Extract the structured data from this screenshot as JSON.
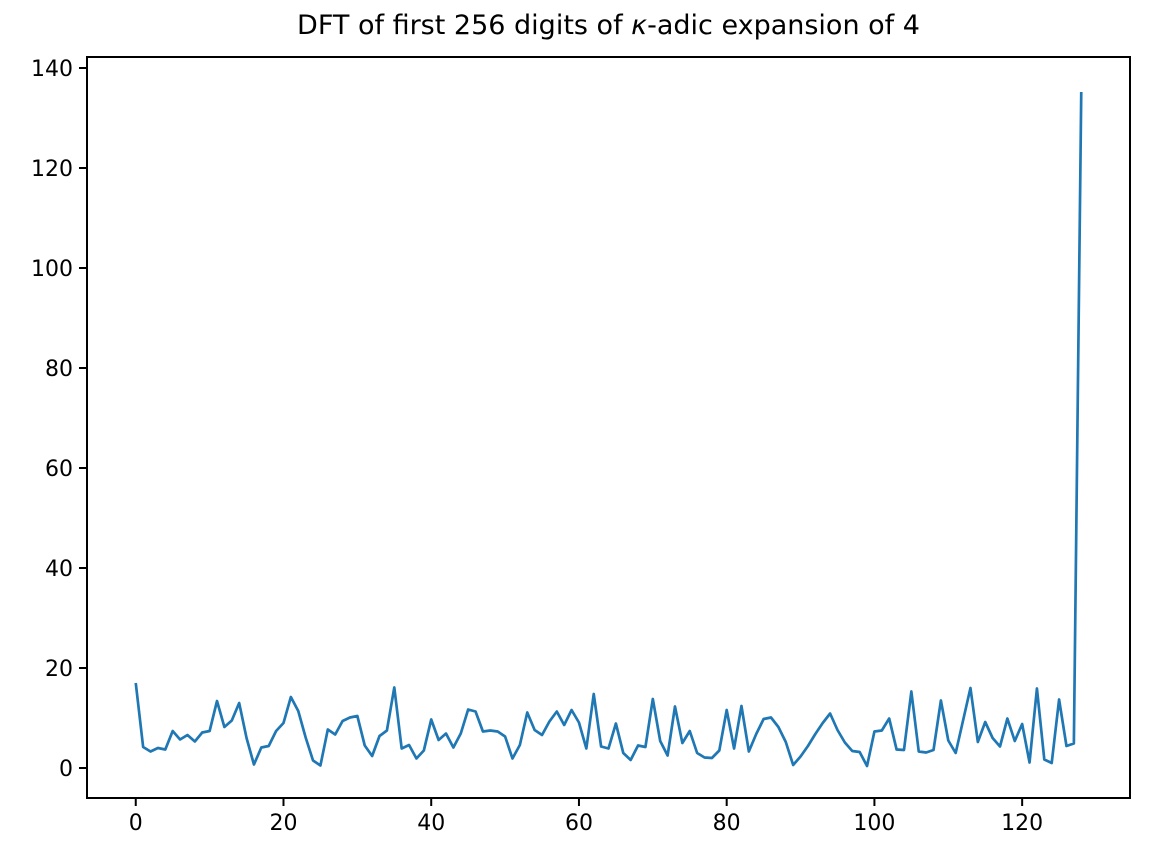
{
  "figure": {
    "background": "#ffffff",
    "title": {
      "full": "DFT of first 256 digits of κ-adic expansion of 4",
      "prefix": "DFT of first 256 digits of ",
      "kappa": "κ",
      "suffix": "-adic expansion of 4"
    }
  },
  "chart_data": {
    "type": "line",
    "title": "DFT of first 256 digits of κ-adic expansion of 4",
    "xlabel": "",
    "ylabel": "",
    "x_range": [
      0,
      128
    ],
    "values": [
      17.0,
      4.2,
      3.3,
      4.0,
      3.7,
      7.4,
      5.7,
      6.6,
      5.3,
      7.1,
      7.4,
      13.4,
      8.2,
      9.5,
      13.0,
      6.0,
      0.7,
      4.1,
      4.4,
      7.4,
      9.0,
      14.2,
      11.4,
      6.1,
      1.5,
      0.5,
      7.7,
      6.7,
      9.4,
      10.1,
      10.4,
      4.5,
      2.4,
      6.4,
      7.5,
      16.1,
      3.9,
      4.6,
      1.9,
      3.5,
      9.7,
      5.6,
      6.9,
      4.1,
      6.9,
      11.7,
      11.3,
      7.3,
      7.5,
      7.3,
      6.3,
      1.9,
      4.6,
      11.1,
      7.6,
      6.6,
      9.3,
      11.3,
      8.6,
      11.6,
      9.1,
      3.9,
      14.8,
      4.3,
      3.9,
      8.9,
      3.0,
      1.6,
      4.5,
      4.2,
      13.8,
      5.4,
      2.5,
      12.3,
      5.0,
      7.4,
      3.0,
      2.1,
      2.0,
      3.5,
      11.6,
      3.9,
      12.4,
      3.3,
      6.8,
      9.8,
      10.1,
      8.2,
      5.2,
      0.6,
      2.3,
      4.4,
      6.8,
      9.0,
      10.9,
      7.6,
      5.1,
      3.4,
      3.2,
      0.4,
      7.3,
      7.5,
      9.9,
      3.7,
      3.6,
      15.3,
      3.3,
      3.1,
      3.6,
      13.5,
      5.5,
      3.0,
      9.5,
      16.0,
      5.2,
      9.2,
      6.0,
      4.3,
      9.9,
      5.4,
      8.8,
      1.1,
      15.9,
      1.7,
      1.0,
      13.7,
      4.4,
      4.9,
      135.2
    ],
    "xlim": [
      -6.6,
      134.6
    ],
    "ylim": [
      -6.0,
      142.2
    ],
    "xticks": [
      0,
      20,
      40,
      60,
      80,
      100,
      120
    ],
    "yticks": [
      0,
      20,
      40,
      60,
      80,
      100,
      120,
      140
    ],
    "line_color": "#1f77b4",
    "axes_color": "#000000",
    "grid": false,
    "legend": null
  }
}
